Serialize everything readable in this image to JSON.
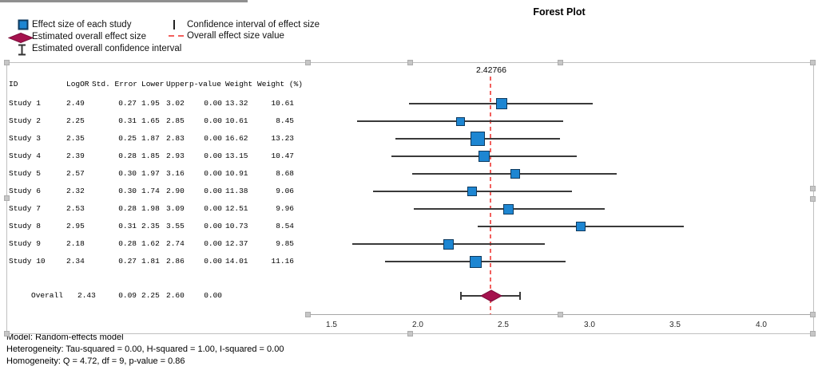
{
  "title": "Forest Plot",
  "legend": {
    "col1": [
      {
        "icon": "effect-size-square-icon",
        "label": "Effect size of each study"
      },
      {
        "icon": "overall-effect-diamond-icon",
        "label": "Estimated overall effect size"
      },
      {
        "icon": "overall-ci-ibeam-icon",
        "label": "Estimated overall confidence interval"
      }
    ],
    "col2": [
      {
        "icon": "ci-vertical-line-icon",
        "label": "Confidence interval of effect size"
      },
      {
        "icon": "overall-value-dash-icon",
        "label": "Overall effect size value"
      }
    ]
  },
  "table": {
    "headers": [
      "ID",
      "LogOR",
      "Std. Error",
      "Lower",
      "Upper",
      "p-value",
      "Weight",
      "Weight (%)"
    ],
    "rows": [
      {
        "id": "Study 1",
        "logor": "2.49",
        "stderr": "0.27",
        "lower": "1.95",
        "upper": "3.02",
        "pvalue": "0.00",
        "weight": "13.32",
        "weight_pct": "10.61"
      },
      {
        "id": "Study 2",
        "logor": "2.25",
        "stderr": "0.31",
        "lower": "1.65",
        "upper": "2.85",
        "pvalue": "0.00",
        "weight": "10.61",
        "weight_pct": "8.45"
      },
      {
        "id": "Study 3",
        "logor": "2.35",
        "stderr": "0.25",
        "lower": "1.87",
        "upper": "2.83",
        "pvalue": "0.00",
        "weight": "16.62",
        "weight_pct": "13.23"
      },
      {
        "id": "Study 4",
        "logor": "2.39",
        "stderr": "0.28",
        "lower": "1.85",
        "upper": "2.93",
        "pvalue": "0.00",
        "weight": "13.15",
        "weight_pct": "10.47"
      },
      {
        "id": "Study 5",
        "logor": "2.57",
        "stderr": "0.30",
        "lower": "1.97",
        "upper": "3.16",
        "pvalue": "0.00",
        "weight": "10.91",
        "weight_pct": "8.68"
      },
      {
        "id": "Study 6",
        "logor": "2.32",
        "stderr": "0.30",
        "lower": "1.74",
        "upper": "2.90",
        "pvalue": "0.00",
        "weight": "11.38",
        "weight_pct": "9.06"
      },
      {
        "id": "Study 7",
        "logor": "2.53",
        "stderr": "0.28",
        "lower": "1.98",
        "upper": "3.09",
        "pvalue": "0.00",
        "weight": "12.51",
        "weight_pct": "9.96"
      },
      {
        "id": "Study 8",
        "logor": "2.95",
        "stderr": "0.31",
        "lower": "2.35",
        "upper": "3.55",
        "pvalue": "0.00",
        "weight": "10.73",
        "weight_pct": "8.54"
      },
      {
        "id": "Study 9",
        "logor": "2.18",
        "stderr": "0.28",
        "lower": "1.62",
        "upper": "2.74",
        "pvalue": "0.00",
        "weight": "12.37",
        "weight_pct": "9.85"
      },
      {
        "id": "Study 10",
        "logor": "2.34",
        "stderr": "0.27",
        "lower": "1.81",
        "upper": "2.86",
        "pvalue": "0.00",
        "weight": "14.01",
        "weight_pct": "11.16"
      }
    ],
    "overall_row": {
      "id": "Overall",
      "logor": "2.43",
      "stderr": "0.09",
      "lower": "2.25",
      "upper": "2.60",
      "pvalue": "0.00"
    }
  },
  "plot": {
    "ref_label": "2.42766"
  },
  "footnotes": [
    "Model: Random-effects model",
    "Heterogeneity: Tau-squared = 0.00, H-squared = 1.00, I-squared = 0.00",
    "Homogeneity: Q = 4.72, df = 9, p-value = 0.86"
  ],
  "colors": {
    "study_marker_fill": "#1d86d2",
    "study_marker_border": "#0e3a5f",
    "overall_marker_fill": "#a5124e",
    "overall_marker_border": "#7d0d3a",
    "ci_line": "#3a3a3a",
    "reference_line_red": "#f2605d",
    "axis_line": "#a6a6a6",
    "frame_gray": "#c0c0c0"
  },
  "chart_data": {
    "type": "scatter",
    "subtype": "forest-plot",
    "title": "Forest Plot",
    "xlabel": "",
    "ylabel": "",
    "x_ticks": [
      1.5,
      2.0,
      2.5,
      3.0,
      3.5,
      4.0
    ],
    "xlim": [
      1.36,
      4.3
    ],
    "reference_line_value": 2.42766,
    "grid": false,
    "legend_position": "top-left",
    "studies": [
      {
        "name": "Study 1",
        "effect": 2.49,
        "lower": 1.95,
        "upper": 3.02,
        "weight_pct": 10.61
      },
      {
        "name": "Study 2",
        "effect": 2.25,
        "lower": 1.65,
        "upper": 2.85,
        "weight_pct": 8.45
      },
      {
        "name": "Study 3",
        "effect": 2.35,
        "lower": 1.87,
        "upper": 2.83,
        "weight_pct": 13.23
      },
      {
        "name": "Study 4",
        "effect": 2.39,
        "lower": 1.85,
        "upper": 2.93,
        "weight_pct": 10.47
      },
      {
        "name": "Study 5",
        "effect": 2.57,
        "lower": 1.97,
        "upper": 3.16,
        "weight_pct": 8.68
      },
      {
        "name": "Study 6",
        "effect": 2.32,
        "lower": 1.74,
        "upper": 2.9,
        "weight_pct": 9.06
      },
      {
        "name": "Study 7",
        "effect": 2.53,
        "lower": 1.98,
        "upper": 3.09,
        "weight_pct": 9.96
      },
      {
        "name": "Study 8",
        "effect": 2.95,
        "lower": 2.35,
        "upper": 3.55,
        "weight_pct": 8.54
      },
      {
        "name": "Study 9",
        "effect": 2.18,
        "lower": 1.62,
        "upper": 2.74,
        "weight_pct": 9.85
      },
      {
        "name": "Study 10",
        "effect": 2.34,
        "lower": 1.81,
        "upper": 2.86,
        "weight_pct": 11.16
      }
    ],
    "overall": {
      "name": "Overall",
      "effect": 2.43,
      "lower": 2.25,
      "upper": 2.6
    }
  }
}
